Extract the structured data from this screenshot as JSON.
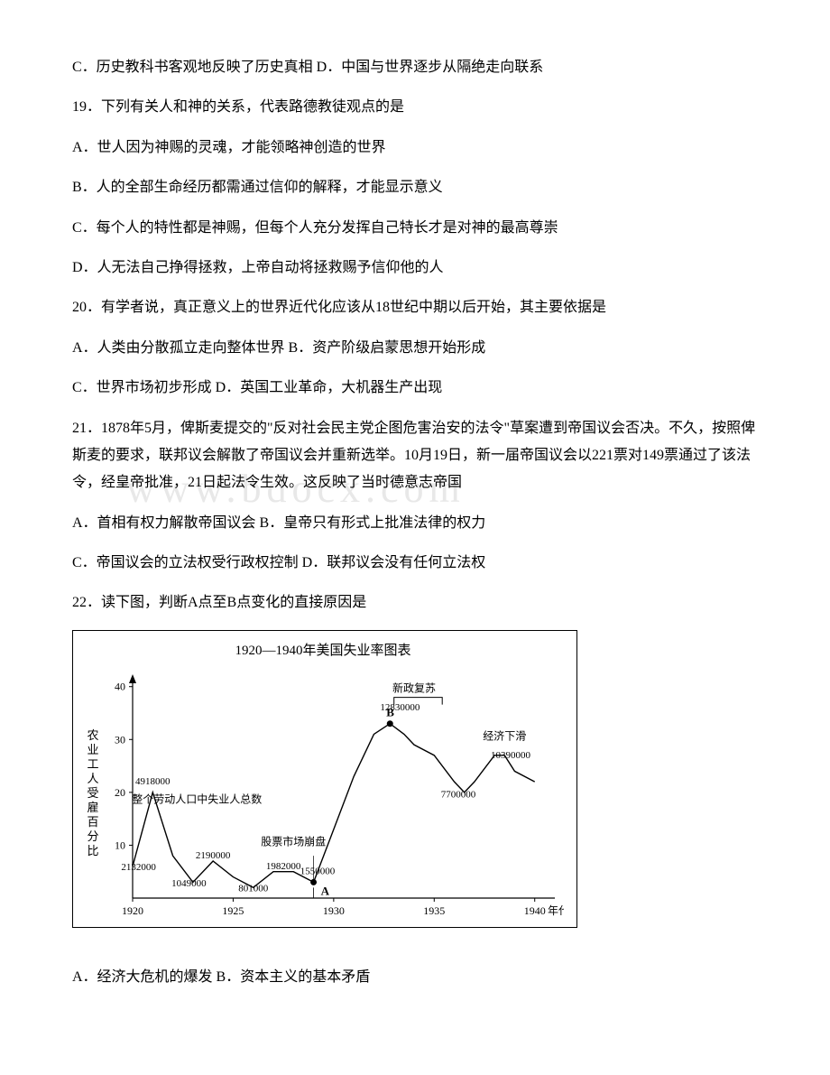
{
  "q18": {
    "cd": "C．历史教科书客观地反映了历史真相 D．中国与世界逐步从隔绝走向联系"
  },
  "q19": {
    "stem": "19．下列有关人和神的关系，代表路德教徒观点的是",
    "a": "A．世人因为神赐的灵魂，才能领略神创造的世界",
    "b": "B．人的全部生命经历都需通过信仰的解释，才能显示意义",
    "c": "C．每个人的特性都是神赐，但每个人充分发挥自己特长才是对神的最高尊崇",
    "d": "D．人无法自己挣得拯救，上帝自动将拯救赐予信仰他的人"
  },
  "q20": {
    "stem": "20．有学者说，真正意义上的世界近代化应该从18世纪中期以后开始，其主要依据是",
    "ab": " A．人类由分散孤立走向整体世界  B．资产阶级启蒙思想开始形成",
    "cd": "C．世界市场初步形成  D．英国工业革命，大机器生产出现"
  },
  "q21": {
    "stem": "21．1878年5月，俾斯麦提交的\"反对社会民主党企图危害治安的法令\"草案遭到帝国议会否决。不久，按照俾斯麦的要求，联邦议会解散了帝国议会并重新选举。10月19日，新一届帝国议会以221票对149票通过了该法令，经皇帝批准，21日起法令生效。这反映了当时德意志帝国",
    "ab": "A．首相有权力解散帝国议会 B．皇帝只有形式上批准法律的权力",
    "cd": "C．帝国议会的立法权受行政权控制 D．联邦议会没有任何立法权"
  },
  "q22": {
    "stem": "22．读下图，判断A点至B点变化的直接原因是",
    "a": "A．经济大危机的爆发 B．资本主义的基本矛盾"
  },
  "watermark": "www.bdocx.com",
  "chart": {
    "title": "1920—1940年美国失业率图表",
    "y_label_vertical": "农业工人受雇百分比",
    "x_label": "年代",
    "background_color": "#ffffff",
    "axis_color": "#000000",
    "line_color": "#000000",
    "text_color": "#000000",
    "font_size_axis": 12,
    "font_size_labels": 11,
    "x_ticks": [
      1920,
      1925,
      1930,
      1935,
      1940
    ],
    "y_ticks": [
      10,
      20,
      30,
      40
    ],
    "y_lim": [
      0,
      42
    ],
    "x_lim": [
      1920,
      1941
    ],
    "annotations": [
      {
        "text": "整个劳动人口中失业人总数",
        "year": 1923.2,
        "val": 18
      },
      {
        "text": "股票市场崩盘",
        "year": 1928,
        "val": 10
      },
      {
        "text": "新政复苏",
        "year": 1934,
        "val": 39,
        "bracket": true
      },
      {
        "text": "经济下滑",
        "year": 1938.5,
        "val": 30
      }
    ],
    "point_labels": [
      {
        "text": "4918000",
        "year": 1921,
        "val": 21.5
      },
      {
        "text": "2132000",
        "year": 1920.3,
        "val": 5.3
      },
      {
        "text": "1049000",
        "year": 1922.8,
        "val": 2.2
      },
      {
        "text": "2190000",
        "year": 1924,
        "val": 7.5
      },
      {
        "text": "801000",
        "year": 1926,
        "val": 1.3
      },
      {
        "text": "1982000",
        "year": 1927.5,
        "val": 5.5
      },
      {
        "text": "1550000",
        "year": 1929.2,
        "val": 4.5
      },
      {
        "text": "12830000",
        "year": 1933.3,
        "val": 35.5
      },
      {
        "text": "7700000",
        "year": 1936.2,
        "val": 19
      },
      {
        "text": "10390000",
        "year": 1938.8,
        "val": 26.5
      }
    ],
    "markers": [
      {
        "label": "A",
        "year": 1929,
        "val": 3
      },
      {
        "label": "B",
        "year": 1932.8,
        "val": 33
      }
    ],
    "series": [
      {
        "year": 1920,
        "val": 6
      },
      {
        "year": 1921,
        "val": 20
      },
      {
        "year": 1922,
        "val": 8
      },
      {
        "year": 1923,
        "val": 3
      },
      {
        "year": 1924,
        "val": 7
      },
      {
        "year": 1925,
        "val": 4
      },
      {
        "year": 1926,
        "val": 2
      },
      {
        "year": 1927,
        "val": 5
      },
      {
        "year": 1928,
        "val": 5
      },
      {
        "year": 1929,
        "val": 3
      },
      {
        "year": 1930,
        "val": 13
      },
      {
        "year": 1931,
        "val": 23
      },
      {
        "year": 1932,
        "val": 31
      },
      {
        "year": 1932.8,
        "val": 33
      },
      {
        "year": 1933.5,
        "val": 31
      },
      {
        "year": 1934,
        "val": 29
      },
      {
        "year": 1935,
        "val": 27
      },
      {
        "year": 1936,
        "val": 22
      },
      {
        "year": 1936.5,
        "val": 20
      },
      {
        "year": 1937,
        "val": 22
      },
      {
        "year": 1938,
        "val": 27
      },
      {
        "year": 1938.5,
        "val": 27
      },
      {
        "year": 1939,
        "val": 24
      },
      {
        "year": 1940,
        "val": 22
      }
    ]
  }
}
